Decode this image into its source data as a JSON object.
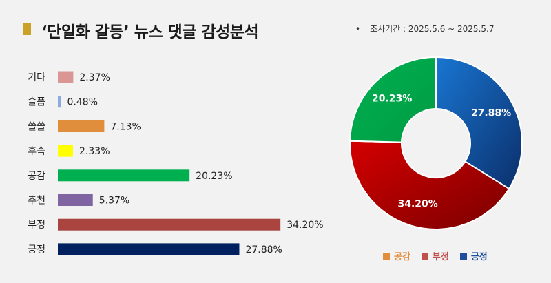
{
  "header": {
    "title": "‘단일화 갈등’ 뉴스 댓글 감성분석",
    "period_bullet": "•",
    "period": "조사기간 : 2025.5.6 ~ 2025.5.7"
  },
  "chart_data": [
    {
      "type": "bar",
      "orientation": "horizontal",
      "categories": [
        "기타",
        "슬픔",
        "쓸쓸",
        "후속",
        "공감",
        "추천",
        "부정",
        "긍정"
      ],
      "values": [
        2.37,
        0.48,
        7.13,
        2.33,
        20.23,
        5.37,
        34.2,
        27.88
      ],
      "value_labels": [
        "2.37%",
        "0.48%",
        "7.13%",
        "2.33%",
        "20.23%",
        "5.37%",
        "34.20%",
        "27.88%"
      ],
      "colors": [
        "#d99694",
        "#8ea9db",
        "#e08d3c",
        "#ffff00",
        "#00b050",
        "#8064a2",
        "#a9443f",
        "#002060"
      ],
      "xlim": [
        0,
        40
      ]
    },
    {
      "type": "pie",
      "style": "donut",
      "categories": [
        "긍정",
        "부정",
        "공감"
      ],
      "values": [
        27.88,
        34.2,
        20.23
      ],
      "value_labels": [
        "27.88%",
        "34.20%",
        "20.23%"
      ],
      "colors": [
        "#1565c0",
        "#c00000",
        "#00b050"
      ],
      "legend": {
        "position": "bottom",
        "items": [
          {
            "label": "공감",
            "color": "#e08d3c"
          },
          {
            "label": "부정",
            "color": "#c0504d"
          },
          {
            "label": "긍정",
            "color": "#1f4e9c"
          }
        ]
      }
    }
  ]
}
